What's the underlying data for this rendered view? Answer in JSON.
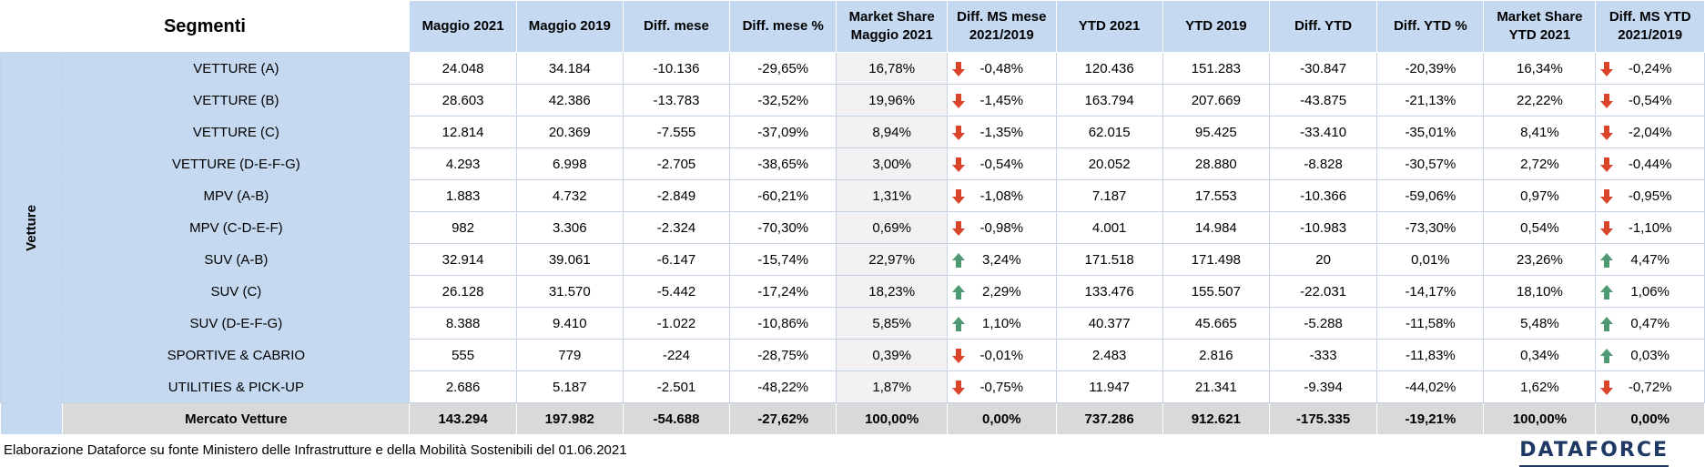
{
  "header": {
    "segmenti": "Segmenti",
    "cols": [
      "Maggio 2021",
      "Maggio 2019",
      "Diff. mese",
      "Diff. mese %",
      "Market Share\nMaggio 2021",
      "Diff. MS mese\n2021/2019",
      "YTD 2021",
      "YTD 2019",
      "Diff. YTD",
      "Diff. YTD %",
      "Market Share\nYTD 2021",
      "Diff. MS YTD\n2021/2019"
    ]
  },
  "group_label": "Vetture",
  "rows": [
    {
      "name": "VETTURE (A)",
      "may21": "24.048",
      "may19": "34.184",
      "diff": "-10.136",
      "diffp": "-29,65%",
      "ms": "16,78%",
      "msdiff": "-0,48%",
      "msdir": "down",
      "ytd21": "120.436",
      "ytd19": "151.283",
      "ydiff": "-30.847",
      "ydiffp": "-20,39%",
      "yms": "16,34%",
      "ymsdiff": "-0,24%",
      "ymsdir": "down"
    },
    {
      "name": "VETTURE (B)",
      "may21": "28.603",
      "may19": "42.386",
      "diff": "-13.783",
      "diffp": "-32,52%",
      "ms": "19,96%",
      "msdiff": "-1,45%",
      "msdir": "down",
      "ytd21": "163.794",
      "ytd19": "207.669",
      "ydiff": "-43.875",
      "ydiffp": "-21,13%",
      "yms": "22,22%",
      "ymsdiff": "-0,54%",
      "ymsdir": "down"
    },
    {
      "name": "VETTURE (C)",
      "may21": "12.814",
      "may19": "20.369",
      "diff": "-7.555",
      "diffp": "-37,09%",
      "ms": "8,94%",
      "msdiff": "-1,35%",
      "msdir": "down",
      "ytd21": "62.015",
      "ytd19": "95.425",
      "ydiff": "-33.410",
      "ydiffp": "-35,01%",
      "yms": "8,41%",
      "ymsdiff": "-2,04%",
      "ymsdir": "down"
    },
    {
      "name": "VETTURE (D-E-F-G)",
      "may21": "4.293",
      "may19": "6.998",
      "diff": "-2.705",
      "diffp": "-38,65%",
      "ms": "3,00%",
      "msdiff": "-0,54%",
      "msdir": "down",
      "ytd21": "20.052",
      "ytd19": "28.880",
      "ydiff": "-8.828",
      "ydiffp": "-30,57%",
      "yms": "2,72%",
      "ymsdiff": "-0,44%",
      "ymsdir": "down"
    },
    {
      "name": "MPV (A-B)",
      "may21": "1.883",
      "may19": "4.732",
      "diff": "-2.849",
      "diffp": "-60,21%",
      "ms": "1,31%",
      "msdiff": "-1,08%",
      "msdir": "down",
      "ytd21": "7.187",
      "ytd19": "17.553",
      "ydiff": "-10.366",
      "ydiffp": "-59,06%",
      "yms": "0,97%",
      "ymsdiff": "-0,95%",
      "ymsdir": "down"
    },
    {
      "name": "MPV (C-D-E-F)",
      "may21": "982",
      "may19": "3.306",
      "diff": "-2.324",
      "diffp": "-70,30%",
      "ms": "0,69%",
      "msdiff": "-0,98%",
      "msdir": "down",
      "ytd21": "4.001",
      "ytd19": "14.984",
      "ydiff": "-10.983",
      "ydiffp": "-73,30%",
      "yms": "0,54%",
      "ymsdiff": "-1,10%",
      "ymsdir": "down"
    },
    {
      "name": "SUV (A-B)",
      "may21": "32.914",
      "may19": "39.061",
      "diff": "-6.147",
      "diffp": "-15,74%",
      "ms": "22,97%",
      "msdiff": "3,24%",
      "msdir": "up",
      "ytd21": "171.518",
      "ytd19": "171.498",
      "ydiff": "20",
      "ydiffp": "0,01%",
      "yms": "23,26%",
      "ymsdiff": "4,47%",
      "ymsdir": "up"
    },
    {
      "name": "SUV (C)",
      "may21": "26.128",
      "may19": "31.570",
      "diff": "-5.442",
      "diffp": "-17,24%",
      "ms": "18,23%",
      "msdiff": "2,29%",
      "msdir": "up",
      "ytd21": "133.476",
      "ytd19": "155.507",
      "ydiff": "-22.031",
      "ydiffp": "-14,17%",
      "yms": "18,10%",
      "ymsdiff": "1,06%",
      "ymsdir": "up"
    },
    {
      "name": "SUV (D-E-F-G)",
      "may21": "8.388",
      "may19": "9.410",
      "diff": "-1.022",
      "diffp": "-10,86%",
      "ms": "5,85%",
      "msdiff": "1,10%",
      "msdir": "up",
      "ytd21": "40.377",
      "ytd19": "45.665",
      "ydiff": "-5.288",
      "ydiffp": "-11,58%",
      "yms": "5,48%",
      "ymsdiff": "0,47%",
      "ymsdir": "up"
    },
    {
      "name": "SPORTIVE & CABRIO",
      "may21": "555",
      "may19": "779",
      "diff": "-224",
      "diffp": "-28,75%",
      "ms": "0,39%",
      "msdiff": "-0,01%",
      "msdir": "down",
      "ytd21": "2.483",
      "ytd19": "2.816",
      "ydiff": "-333",
      "ydiffp": "-11,83%",
      "yms": "0,34%",
      "ymsdiff": "0,03%",
      "ymsdir": "up"
    },
    {
      "name": "UTILITIES & PICK-UP",
      "may21": "2.686",
      "may19": "5.187",
      "diff": "-2.501",
      "diffp": "-48,22%",
      "ms": "1,87%",
      "msdiff": "-0,75%",
      "msdir": "down",
      "ytd21": "11.947",
      "ytd19": "21.341",
      "ydiff": "-9.394",
      "ydiffp": "-44,02%",
      "yms": "1,62%",
      "ymsdiff": "-0,72%",
      "ymsdir": "down"
    }
  ],
  "total": {
    "name": "Mercato Vetture",
    "may21": "143.294",
    "may19": "197.982",
    "diff": "-54.688",
    "diffp": "-27,62%",
    "ms": "100,00%",
    "msdiff": "0,00%",
    "ytd21": "737.286",
    "ytd19": "912.621",
    "ydiff": "-175.335",
    "ydiffp": "-19,21%",
    "yms": "100,00%",
    "ymsdiff": "0,00%"
  },
  "footer": "Elaborazione Dataforce su fonte Ministero delle Infrastrutture e della Mobilità Sostenibili del 01.06.2021",
  "logo": "DATAFORCE",
  "colors": {
    "negative": "#e0201b",
    "arrow_up": "#4f9a72",
    "arrow_down": "#d9442a",
    "header_bg": "#c5d9f1",
    "total_bg": "#d9d9d9"
  }
}
